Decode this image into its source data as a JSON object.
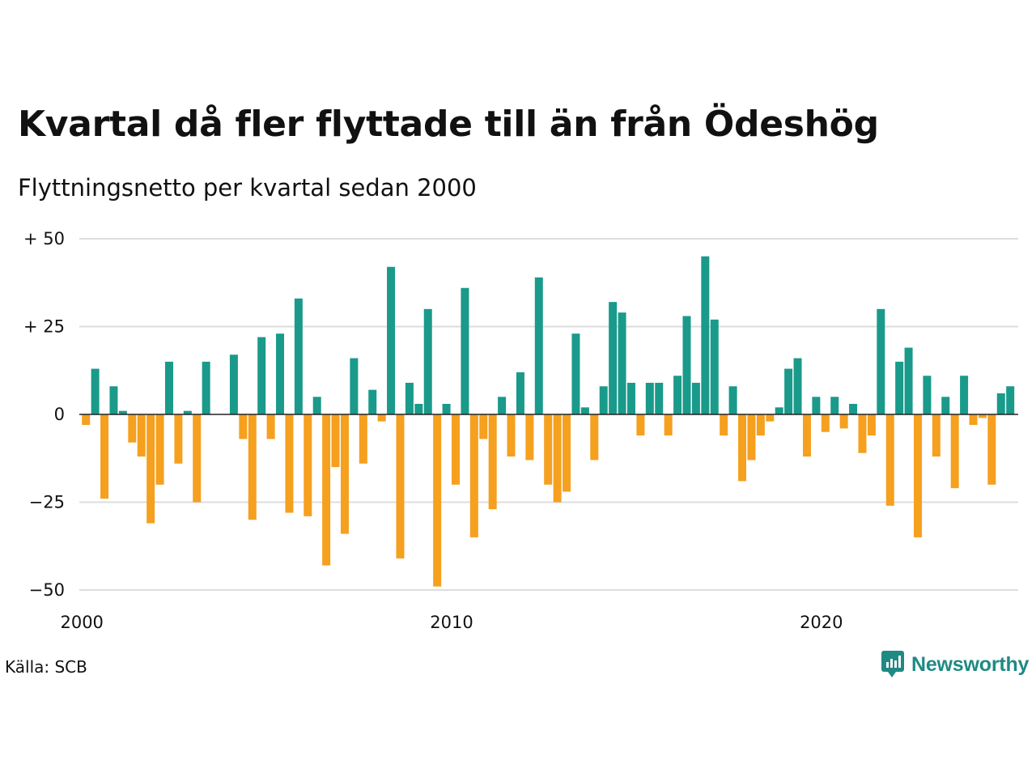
{
  "title": "Kvartal då fler flyttade till än från Ödeshög",
  "subtitle": "Flyttningsnetto per kvartal sedan 2000",
  "source": "Källa: SCB",
  "brand": {
    "name": "Newsworthy",
    "icon": "newsworthy-logo-icon"
  },
  "colors": {
    "positive": "#1a9a8a",
    "negative": "#f5a01f",
    "grid": "#dddddd",
    "baseline": "#222222"
  },
  "chart_data": {
    "type": "bar",
    "x_start": "2000 Q1",
    "x_ticks": [
      {
        "label": "2000",
        "index": 0
      },
      {
        "label": "2010",
        "index": 40
      },
      {
        "label": "2020",
        "index": 80
      }
    ],
    "y_ticks": [
      {
        "label": "+ 50",
        "value": 50
      },
      {
        "label": "+ 25",
        "value": 25
      },
      {
        "label": "0",
        "value": 0
      },
      {
        "label": "−25",
        "value": -25
      },
      {
        "label": "−50",
        "value": -50
      }
    ],
    "ylim": [
      -50,
      50
    ],
    "grid": true,
    "values": [
      -3,
      13,
      -24,
      8,
      1,
      -8,
      -12,
      -31,
      -20,
      15,
      -14,
      1,
      -25,
      15,
      0,
      0,
      17,
      -7,
      -30,
      22,
      -7,
      23,
      -28,
      33,
      -29,
      5,
      -43,
      -15,
      -34,
      16,
      -14,
      7,
      -2,
      42,
      -41,
      9,
      3,
      30,
      -49,
      3,
      -20,
      36,
      -35,
      -7,
      -27,
      5,
      -12,
      12,
      -13,
      39,
      -20,
      -25,
      -22,
      23,
      2,
      -13,
      8,
      32,
      29,
      9,
      -6,
      9,
      9,
      -6,
      11,
      28,
      9,
      45,
      27,
      -6,
      8,
      -19,
      -13,
      -6,
      -2,
      2,
      13,
      16,
      -12,
      5,
      -5,
      5,
      -4,
      3,
      -11,
      -6,
      30,
      -26,
      15,
      19,
      -35,
      11,
      -12,
      5,
      -21,
      11,
      -3,
      -1,
      -20,
      6,
      8
    ]
  }
}
